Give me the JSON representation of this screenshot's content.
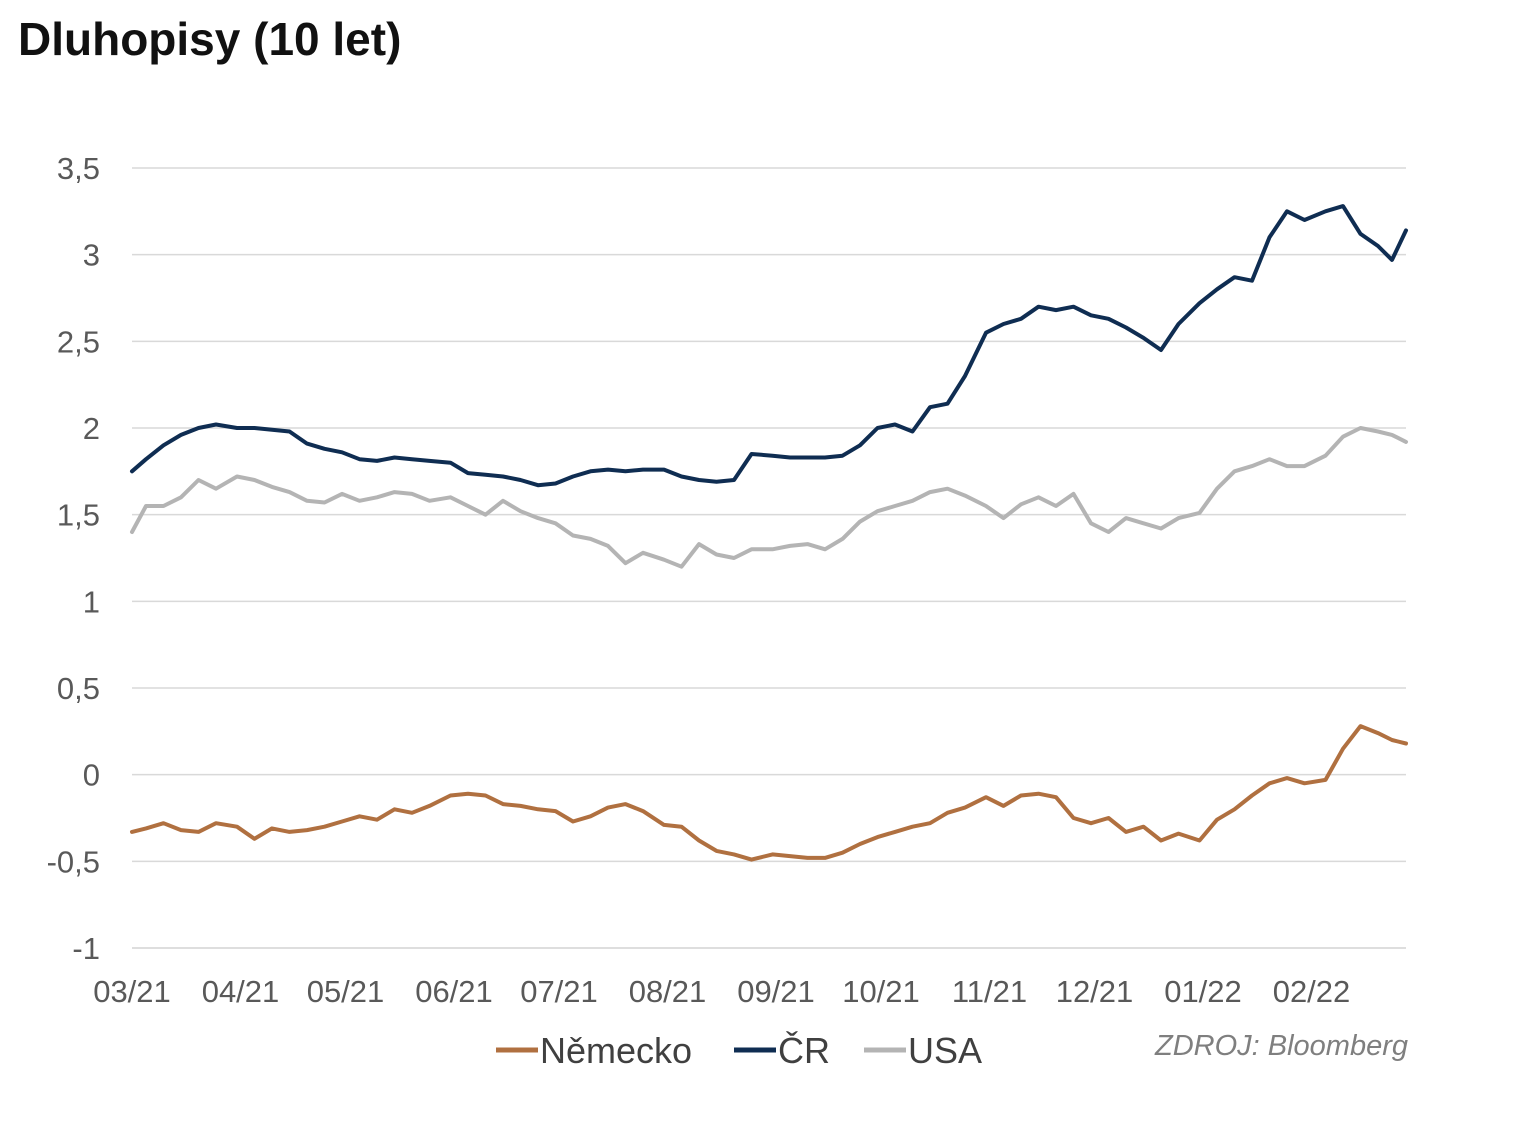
{
  "chart_data": {
    "type": "line",
    "title": "Dluhopisy (10 let)",
    "xlabel": "",
    "ylabel": "",
    "x_categories": [
      "03/21",
      "04/21",
      "05/21",
      "06/21",
      "07/21",
      "08/21",
      "09/21",
      "10/21",
      "11/21",
      "12/21",
      "01/22",
      "02/22"
    ],
    "y_ticks": [
      3.5,
      3,
      2.5,
      2,
      1.5,
      1,
      0.5,
      0,
      -0.5,
      -1
    ],
    "y_tick_labels": [
      "3,5",
      "3",
      "2,5",
      "2",
      "1,5",
      "1",
      "0,5",
      "0",
      "-0,5",
      "-1"
    ],
    "ylim": [
      -1,
      3.5
    ],
    "xlim": [
      "2021-03-01",
      "2022-02-28"
    ],
    "grid": "horizontal",
    "legend_position": "bottom",
    "source": "ZDROJ: Bloomberg",
    "series": [
      {
        "name": "Německo",
        "color": "#b07040",
        "points": [
          [
            "2021-03-01",
            -0.33
          ],
          [
            "2021-03-05",
            -0.31
          ],
          [
            "2021-03-10",
            -0.28
          ],
          [
            "2021-03-15",
            -0.32
          ],
          [
            "2021-03-20",
            -0.33
          ],
          [
            "2021-03-25",
            -0.28
          ],
          [
            "2021-03-31",
            -0.3
          ],
          [
            "2021-04-05",
            -0.37
          ],
          [
            "2021-04-10",
            -0.31
          ],
          [
            "2021-04-15",
            -0.33
          ],
          [
            "2021-04-20",
            -0.32
          ],
          [
            "2021-04-25",
            -0.3
          ],
          [
            "2021-04-30",
            -0.27
          ],
          [
            "2021-05-05",
            -0.24
          ],
          [
            "2021-05-10",
            -0.26
          ],
          [
            "2021-05-15",
            -0.2
          ],
          [
            "2021-05-20",
            -0.22
          ],
          [
            "2021-05-25",
            -0.18
          ],
          [
            "2021-05-31",
            -0.12
          ],
          [
            "2021-06-05",
            -0.11
          ],
          [
            "2021-06-10",
            -0.12
          ],
          [
            "2021-06-15",
            -0.17
          ],
          [
            "2021-06-20",
            -0.18
          ],
          [
            "2021-06-25",
            -0.2
          ],
          [
            "2021-06-30",
            -0.21
          ],
          [
            "2021-07-05",
            -0.27
          ],
          [
            "2021-07-10",
            -0.24
          ],
          [
            "2021-07-15",
            -0.19
          ],
          [
            "2021-07-20",
            -0.17
          ],
          [
            "2021-07-25",
            -0.21
          ],
          [
            "2021-07-31",
            -0.29
          ],
          [
            "2021-08-05",
            -0.3
          ],
          [
            "2021-08-10",
            -0.38
          ],
          [
            "2021-08-15",
            -0.44
          ],
          [
            "2021-08-20",
            -0.46
          ],
          [
            "2021-08-25",
            -0.49
          ],
          [
            "2021-08-31",
            -0.46
          ],
          [
            "2021-09-05",
            -0.47
          ],
          [
            "2021-09-10",
            -0.48
          ],
          [
            "2021-09-15",
            -0.48
          ],
          [
            "2021-09-20",
            -0.45
          ],
          [
            "2021-09-25",
            -0.4
          ],
          [
            "2021-09-30",
            -0.36
          ],
          [
            "2021-10-05",
            -0.33
          ],
          [
            "2021-10-10",
            -0.3
          ],
          [
            "2021-10-15",
            -0.28
          ],
          [
            "2021-10-20",
            -0.22
          ],
          [
            "2021-10-25",
            -0.19
          ],
          [
            "2021-10-31",
            -0.13
          ],
          [
            "2021-11-05",
            -0.18
          ],
          [
            "2021-11-10",
            -0.12
          ],
          [
            "2021-11-15",
            -0.11
          ],
          [
            "2021-11-20",
            -0.13
          ],
          [
            "2021-11-25",
            -0.25
          ],
          [
            "2021-11-30",
            -0.28
          ],
          [
            "2021-12-05",
            -0.25
          ],
          [
            "2021-12-10",
            -0.33
          ],
          [
            "2021-12-15",
            -0.3
          ],
          [
            "2021-12-20",
            -0.38
          ],
          [
            "2021-12-25",
            -0.34
          ],
          [
            "2021-12-31",
            -0.38
          ],
          [
            "2022-01-05",
            -0.26
          ],
          [
            "2022-01-10",
            -0.2
          ],
          [
            "2022-01-15",
            -0.12
          ],
          [
            "2022-01-20",
            -0.05
          ],
          [
            "2022-01-25",
            -0.02
          ],
          [
            "2022-01-30",
            -0.05
          ],
          [
            "2022-02-05",
            -0.03
          ],
          [
            "2022-02-10",
            0.15
          ],
          [
            "2022-02-15",
            0.28
          ],
          [
            "2022-02-20",
            0.24
          ],
          [
            "2022-02-24",
            0.2
          ],
          [
            "2022-02-28",
            0.18
          ]
        ]
      },
      {
        "name": "ČR",
        "color": "#0f2d52",
        "points": [
          [
            "2021-03-01",
            1.75
          ],
          [
            "2021-03-05",
            1.82
          ],
          [
            "2021-03-10",
            1.9
          ],
          [
            "2021-03-15",
            1.96
          ],
          [
            "2021-03-20",
            2.0
          ],
          [
            "2021-03-25",
            2.02
          ],
          [
            "2021-03-31",
            2.0
          ],
          [
            "2021-04-05",
            2.0
          ],
          [
            "2021-04-10",
            1.99
          ],
          [
            "2021-04-15",
            1.98
          ],
          [
            "2021-04-20",
            1.91
          ],
          [
            "2021-04-25",
            1.88
          ],
          [
            "2021-04-30",
            1.86
          ],
          [
            "2021-05-05",
            1.82
          ],
          [
            "2021-05-10",
            1.81
          ],
          [
            "2021-05-15",
            1.83
          ],
          [
            "2021-05-20",
            1.82
          ],
          [
            "2021-05-25",
            1.81
          ],
          [
            "2021-05-31",
            1.8
          ],
          [
            "2021-06-05",
            1.74
          ],
          [
            "2021-06-10",
            1.73
          ],
          [
            "2021-06-15",
            1.72
          ],
          [
            "2021-06-20",
            1.7
          ],
          [
            "2021-06-25",
            1.67
          ],
          [
            "2021-06-30",
            1.68
          ],
          [
            "2021-07-05",
            1.72
          ],
          [
            "2021-07-10",
            1.75
          ],
          [
            "2021-07-15",
            1.76
          ],
          [
            "2021-07-20",
            1.75
          ],
          [
            "2021-07-25",
            1.76
          ],
          [
            "2021-07-31",
            1.76
          ],
          [
            "2021-08-05",
            1.72
          ],
          [
            "2021-08-10",
            1.7
          ],
          [
            "2021-08-15",
            1.69
          ],
          [
            "2021-08-20",
            1.7
          ],
          [
            "2021-08-25",
            1.85
          ],
          [
            "2021-08-31",
            1.84
          ],
          [
            "2021-09-05",
            1.83
          ],
          [
            "2021-09-10",
            1.83
          ],
          [
            "2021-09-15",
            1.83
          ],
          [
            "2021-09-20",
            1.84
          ],
          [
            "2021-09-25",
            1.9
          ],
          [
            "2021-09-30",
            2.0
          ],
          [
            "2021-10-05",
            2.02
          ],
          [
            "2021-10-10",
            1.98
          ],
          [
            "2021-10-15",
            2.12
          ],
          [
            "2021-10-20",
            2.14
          ],
          [
            "2021-10-25",
            2.3
          ],
          [
            "2021-10-31",
            2.55
          ],
          [
            "2021-11-05",
            2.6
          ],
          [
            "2021-11-10",
            2.63
          ],
          [
            "2021-11-15",
            2.7
          ],
          [
            "2021-11-20",
            2.68
          ],
          [
            "2021-11-25",
            2.7
          ],
          [
            "2021-11-30",
            2.65
          ],
          [
            "2021-12-05",
            2.63
          ],
          [
            "2021-12-10",
            2.58
          ],
          [
            "2021-12-15",
            2.52
          ],
          [
            "2021-12-20",
            2.45
          ],
          [
            "2021-12-25",
            2.6
          ],
          [
            "2021-12-31",
            2.72
          ],
          [
            "2022-01-05",
            2.8
          ],
          [
            "2022-01-10",
            2.87
          ],
          [
            "2022-01-15",
            2.85
          ],
          [
            "2022-01-20",
            3.1
          ],
          [
            "2022-01-25",
            3.25
          ],
          [
            "2022-01-30",
            3.2
          ],
          [
            "2022-02-05",
            3.25
          ],
          [
            "2022-02-10",
            3.28
          ],
          [
            "2022-02-15",
            3.12
          ],
          [
            "2022-02-20",
            3.05
          ],
          [
            "2022-02-24",
            2.97
          ],
          [
            "2022-02-28",
            3.14
          ]
        ]
      },
      {
        "name": "USA",
        "color": "#b4b4b4",
        "points": [
          [
            "2021-03-01",
            1.4
          ],
          [
            "2021-03-05",
            1.55
          ],
          [
            "2021-03-10",
            1.55
          ],
          [
            "2021-03-15",
            1.6
          ],
          [
            "2021-03-20",
            1.7
          ],
          [
            "2021-03-25",
            1.65
          ],
          [
            "2021-03-31",
            1.72
          ],
          [
            "2021-04-05",
            1.7
          ],
          [
            "2021-04-10",
            1.66
          ],
          [
            "2021-04-15",
            1.63
          ],
          [
            "2021-04-20",
            1.58
          ],
          [
            "2021-04-25",
            1.57
          ],
          [
            "2021-04-30",
            1.62
          ],
          [
            "2021-05-05",
            1.58
          ],
          [
            "2021-05-10",
            1.6
          ],
          [
            "2021-05-15",
            1.63
          ],
          [
            "2021-05-20",
            1.62
          ],
          [
            "2021-05-25",
            1.58
          ],
          [
            "2021-05-31",
            1.6
          ],
          [
            "2021-06-05",
            1.55
          ],
          [
            "2021-06-10",
            1.5
          ],
          [
            "2021-06-15",
            1.58
          ],
          [
            "2021-06-20",
            1.52
          ],
          [
            "2021-06-25",
            1.48
          ],
          [
            "2021-06-30",
            1.45
          ],
          [
            "2021-07-05",
            1.38
          ],
          [
            "2021-07-10",
            1.36
          ],
          [
            "2021-07-15",
            1.32
          ],
          [
            "2021-07-20",
            1.22
          ],
          [
            "2021-07-25",
            1.28
          ],
          [
            "2021-07-31",
            1.24
          ],
          [
            "2021-08-05",
            1.2
          ],
          [
            "2021-08-10",
            1.33
          ],
          [
            "2021-08-15",
            1.27
          ],
          [
            "2021-08-20",
            1.25
          ],
          [
            "2021-08-25",
            1.3
          ],
          [
            "2021-08-31",
            1.3
          ],
          [
            "2021-09-05",
            1.32
          ],
          [
            "2021-09-10",
            1.33
          ],
          [
            "2021-09-15",
            1.3
          ],
          [
            "2021-09-20",
            1.36
          ],
          [
            "2021-09-25",
            1.46
          ],
          [
            "2021-09-30",
            1.52
          ],
          [
            "2021-10-05",
            1.55
          ],
          [
            "2021-10-10",
            1.58
          ],
          [
            "2021-10-15",
            1.63
          ],
          [
            "2021-10-20",
            1.65
          ],
          [
            "2021-10-25",
            1.61
          ],
          [
            "2021-10-31",
            1.55
          ],
          [
            "2021-11-05",
            1.48
          ],
          [
            "2021-11-10",
            1.56
          ],
          [
            "2021-11-15",
            1.6
          ],
          [
            "2021-11-20",
            1.55
          ],
          [
            "2021-11-25",
            1.62
          ],
          [
            "2021-11-30",
            1.45
          ],
          [
            "2021-12-05",
            1.4
          ],
          [
            "2021-12-10",
            1.48
          ],
          [
            "2021-12-15",
            1.45
          ],
          [
            "2021-12-20",
            1.42
          ],
          [
            "2021-12-25",
            1.48
          ],
          [
            "2021-12-31",
            1.51
          ],
          [
            "2022-01-05",
            1.65
          ],
          [
            "2022-01-10",
            1.75
          ],
          [
            "2022-01-15",
            1.78
          ],
          [
            "2022-01-20",
            1.82
          ],
          [
            "2022-01-25",
            1.78
          ],
          [
            "2022-01-30",
            1.78
          ],
          [
            "2022-02-05",
            1.84
          ],
          [
            "2022-02-10",
            1.95
          ],
          [
            "2022-02-15",
            2.0
          ],
          [
            "2022-02-20",
            1.98
          ],
          [
            "2022-02-24",
            1.96
          ],
          [
            "2022-02-28",
            1.92
          ]
        ]
      }
    ]
  }
}
